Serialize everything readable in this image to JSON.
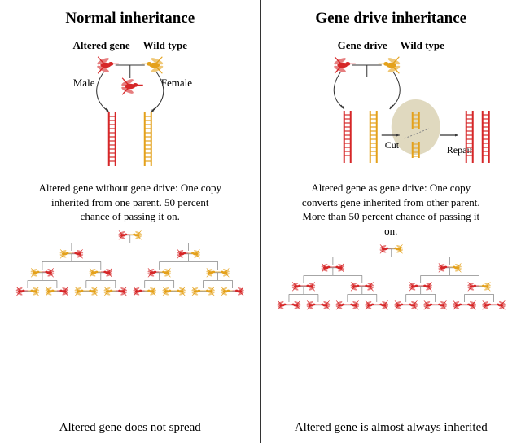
{
  "colors": {
    "altered": "#d62728",
    "wildtype": "#e4a11b",
    "blob": "#ddd5b8",
    "line": "#333333",
    "bg": "#ffffff"
  },
  "left": {
    "title": "Normal inheritance",
    "label_altered": "Altered gene",
    "label_wild": "Wild type",
    "male": "Male",
    "female": "Female",
    "paragraph": "Altered gene without gene drive: One copy inherited from one parent. 50 percent chance of passing it on.",
    "caption": "Altered gene does not spread"
  },
  "right": {
    "title": "Gene drive inheritance",
    "label_altered": "Gene drive",
    "label_wild": "Wild type",
    "cut": "Cut",
    "repair": "Repair",
    "paragraph": "Altered gene as gene drive: One copy converts gene inherited from other parent. More than 50 percent chance of passing it on.",
    "caption": "Altered gene is almost always inherited"
  },
  "tree_left": [
    [
      "R",
      "Y"
    ],
    [
      "Y",
      "R",
      "R",
      "Y"
    ],
    [
      "Y",
      "R",
      "Y",
      "R",
      "R",
      "Y",
      "Y",
      "Y"
    ],
    [
      "R",
      "Y",
      "Y",
      "R",
      "Y",
      "Y",
      "Y",
      "R",
      "R",
      "Y",
      "Y",
      "Y",
      "Y",
      "Y",
      "Y",
      "R"
    ]
  ],
  "tree_right": [
    [
      "R",
      "Y"
    ],
    [
      "R",
      "R",
      "R",
      "Y"
    ],
    [
      "R",
      "R",
      "R",
      "R",
      "R",
      "R",
      "R",
      "Y"
    ],
    [
      "R",
      "R",
      "R",
      "R",
      "R",
      "R",
      "R",
      "R",
      "R",
      "R",
      "R",
      "R",
      "R",
      "R",
      "R",
      "R"
    ]
  ]
}
